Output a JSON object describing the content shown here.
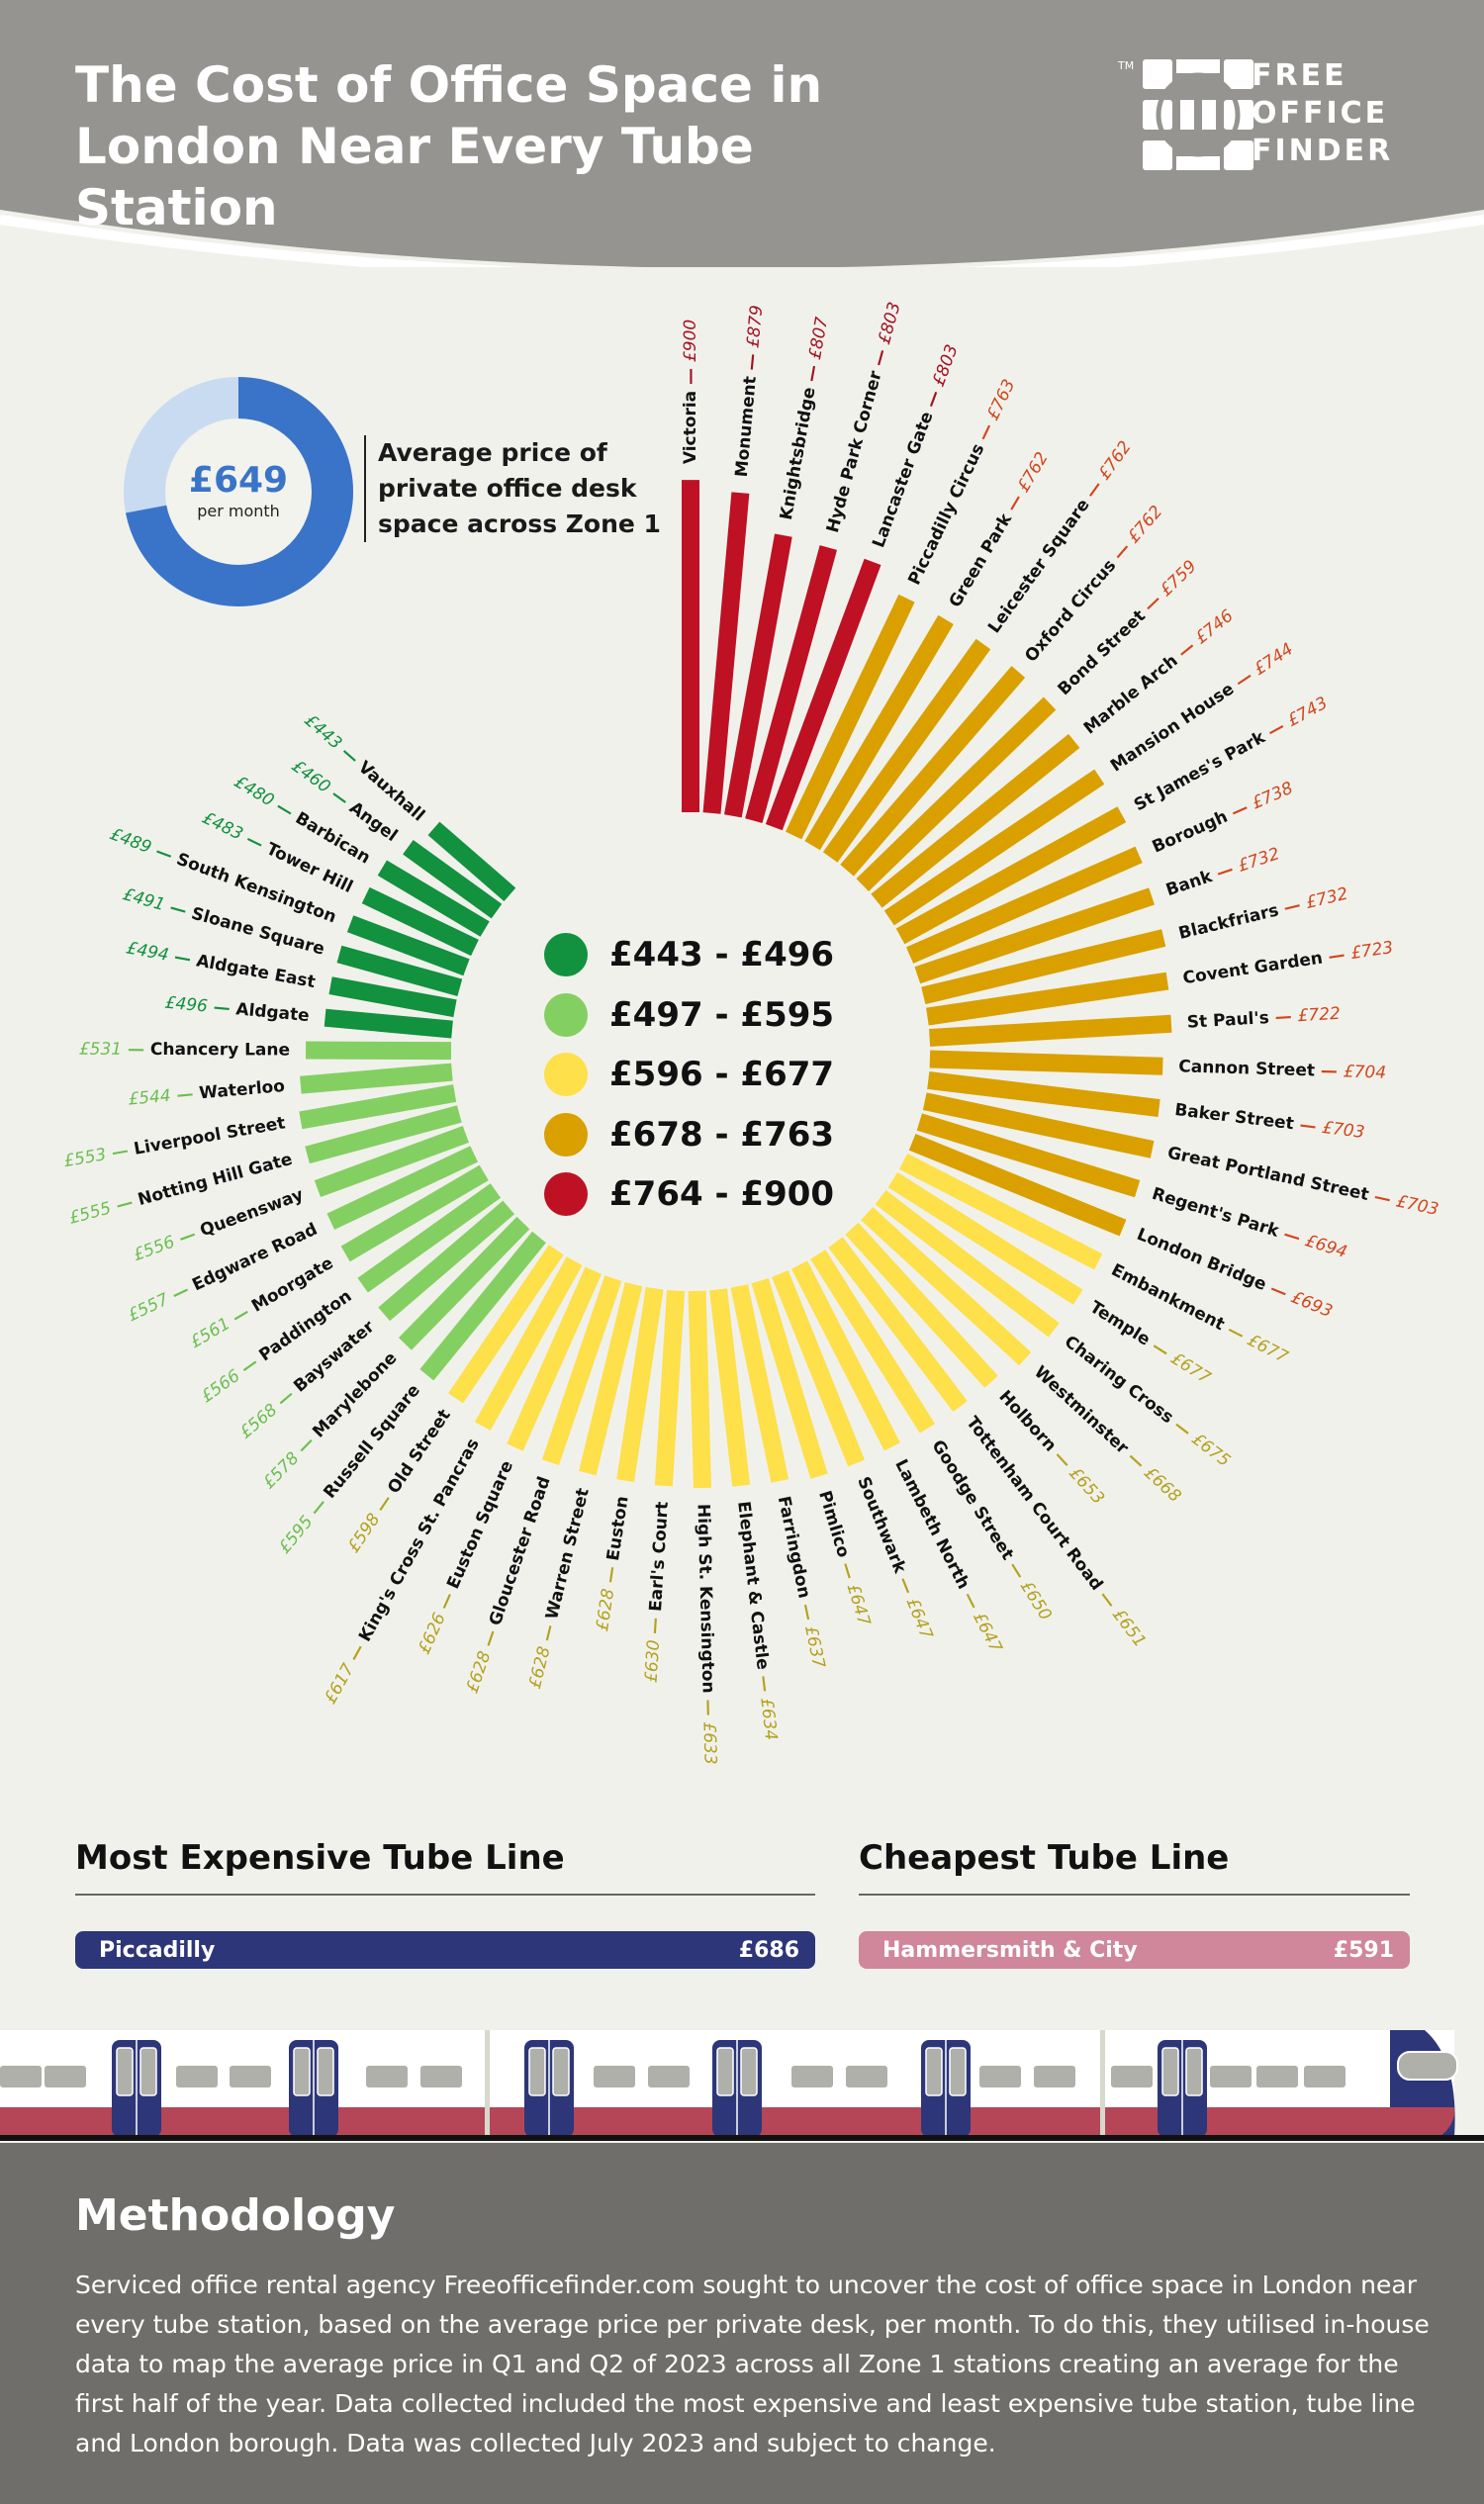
{
  "header": {
    "title": "The Cost of Office Space in London Near Every Tube Station",
    "logo_text": [
      "FREE",
      "OFFICE",
      "FINDER"
    ],
    "logo_tm": "TM",
    "bg": "#959490"
  },
  "average": {
    "value": "£649",
    "unit": "per month",
    "caption": "Average price of private office desk space across Zone 1",
    "fill_fraction": 0.72,
    "color": "#3a74c8",
    "track": "#c9dbf1"
  },
  "legend": [
    {
      "label": "£443 - £496",
      "color": "#12913e"
    },
    {
      "label": "£497 - £595",
      "color": "#84cf62"
    },
    {
      "label": "£596 - £677",
      "color": "#fde04a"
    },
    {
      "label": "£678 - £763",
      "color": "#d9a000"
    },
    {
      "label": "£764 - £900",
      "color": "#be1124"
    }
  ],
  "chart_data": {
    "type": "bar",
    "layout": "radial",
    "stations": [
      "Victoria",
      "Monument",
      "Knightsbridge",
      "Hyde Park Corner",
      "Lancaster Gate",
      "Piccadilly Circus",
      "Green Park",
      "Leicester Square",
      "Oxford Circus",
      "Bond Street",
      "Marble Arch",
      "Mansion House",
      "St James's Park",
      "Borough",
      "Bank",
      "Blackfriars",
      "Covent Garden",
      "St Paul's",
      "Cannon Street",
      "Baker Street",
      "Great Portland Street",
      "Regent's Park",
      "London Bridge",
      "Embankment",
      "Temple",
      "Charing Cross",
      "Westminster",
      "Holborn",
      "Tottenham Court Road",
      "Goodge Street",
      "Lambeth North",
      "Southwark",
      "Pimlico",
      "Farringdon",
      "Elephant & Castle",
      "High St. Kensington",
      "Earl's Court",
      "Euston",
      "Warren Street",
      "Gloucester Road",
      "Euston Square",
      "King's Cross St. Pancras",
      "Old Street",
      "Russell Square",
      "Marylebone",
      "Bayswater",
      "Paddington",
      "Moorgate",
      "Edgware Road",
      "Queensway",
      "Notting Hill Gate",
      "Liverpool Street",
      "Waterloo",
      "Chancery Lane",
      "Aldgate",
      "Aldgate East",
      "Sloane Square",
      "South Kensington",
      "Tower Hill",
      "Barbican",
      "Angel",
      "Vauxhall"
    ],
    "values": [
      900,
      879,
      807,
      803,
      803,
      763,
      762,
      762,
      762,
      759,
      746,
      744,
      743,
      738,
      732,
      732,
      723,
      722,
      704,
      703,
      703,
      694,
      693,
      677,
      677,
      675,
      668,
      653,
      651,
      650,
      647,
      647,
      647,
      637,
      634,
      633,
      630,
      628,
      628,
      628,
      626,
      617,
      598,
      595,
      578,
      568,
      566,
      561,
      557,
      556,
      555,
      553,
      544,
      531,
      496,
      494,
      491,
      489,
      483,
      480,
      460,
      443
    ],
    "unit": "£"
  },
  "lines": {
    "expensive": {
      "heading": "Most Expensive Tube Line",
      "name": "Piccadilly",
      "price": "£686",
      "color": "#2d3679"
    },
    "cheapest": {
      "heading": "Cheapest Tube Line",
      "name": "Hammersmith & City",
      "price": "£591",
      "color": "#d0869b"
    }
  },
  "methodology": {
    "heading": "Methodology",
    "text": "Serviced office rental agency Freeofficefinder.com sought to uncover the cost of office space in London near every tube station, based on the average price per private desk, per month. To do this, they utilised in-house data to map the average price in Q1 and Q2 of 2023 across all Zone 1 stations creating an average for the first half of the year. Data collected included the most expensive and least expensive tube station, tube line and London borough. Data was collected July 2023 and subject to change."
  }
}
